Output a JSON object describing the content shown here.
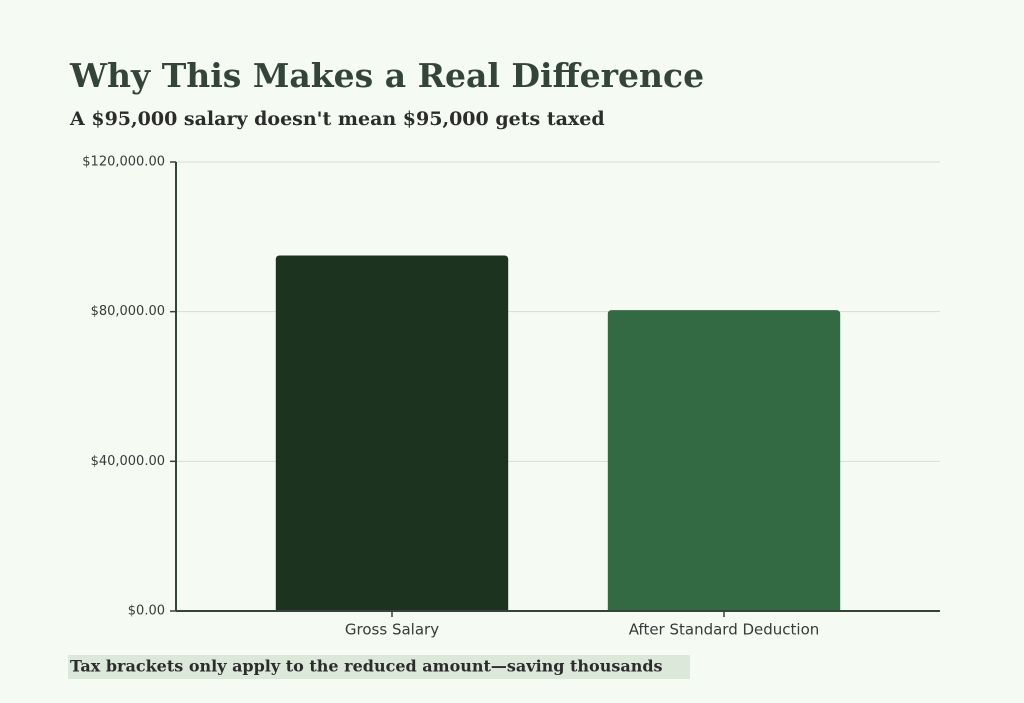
{
  "chart_data": {
    "type": "bar",
    "title": "Why This Makes a Real Difference",
    "subtitle": "A $95,000 salary doesn't mean $95,000 gets taxed",
    "categories": [
      "Gross Salary",
      "After Standard Deduction"
    ],
    "values": [
      95000,
      80400
    ],
    "colors": [
      "#1c3320",
      "#336a43"
    ],
    "ylim": [
      0,
      120000
    ],
    "yticks": [
      {
        "value": 0,
        "label": "$0.00"
      },
      {
        "value": 40000,
        "label": "$40,000.00"
      },
      {
        "value": 80000,
        "label": "$80,000.00"
      },
      {
        "value": 120000,
        "label": "$120,000.00"
      }
    ],
    "grid": true,
    "note": "Tax brackets only apply to the reduced amount—saving thousands"
  }
}
